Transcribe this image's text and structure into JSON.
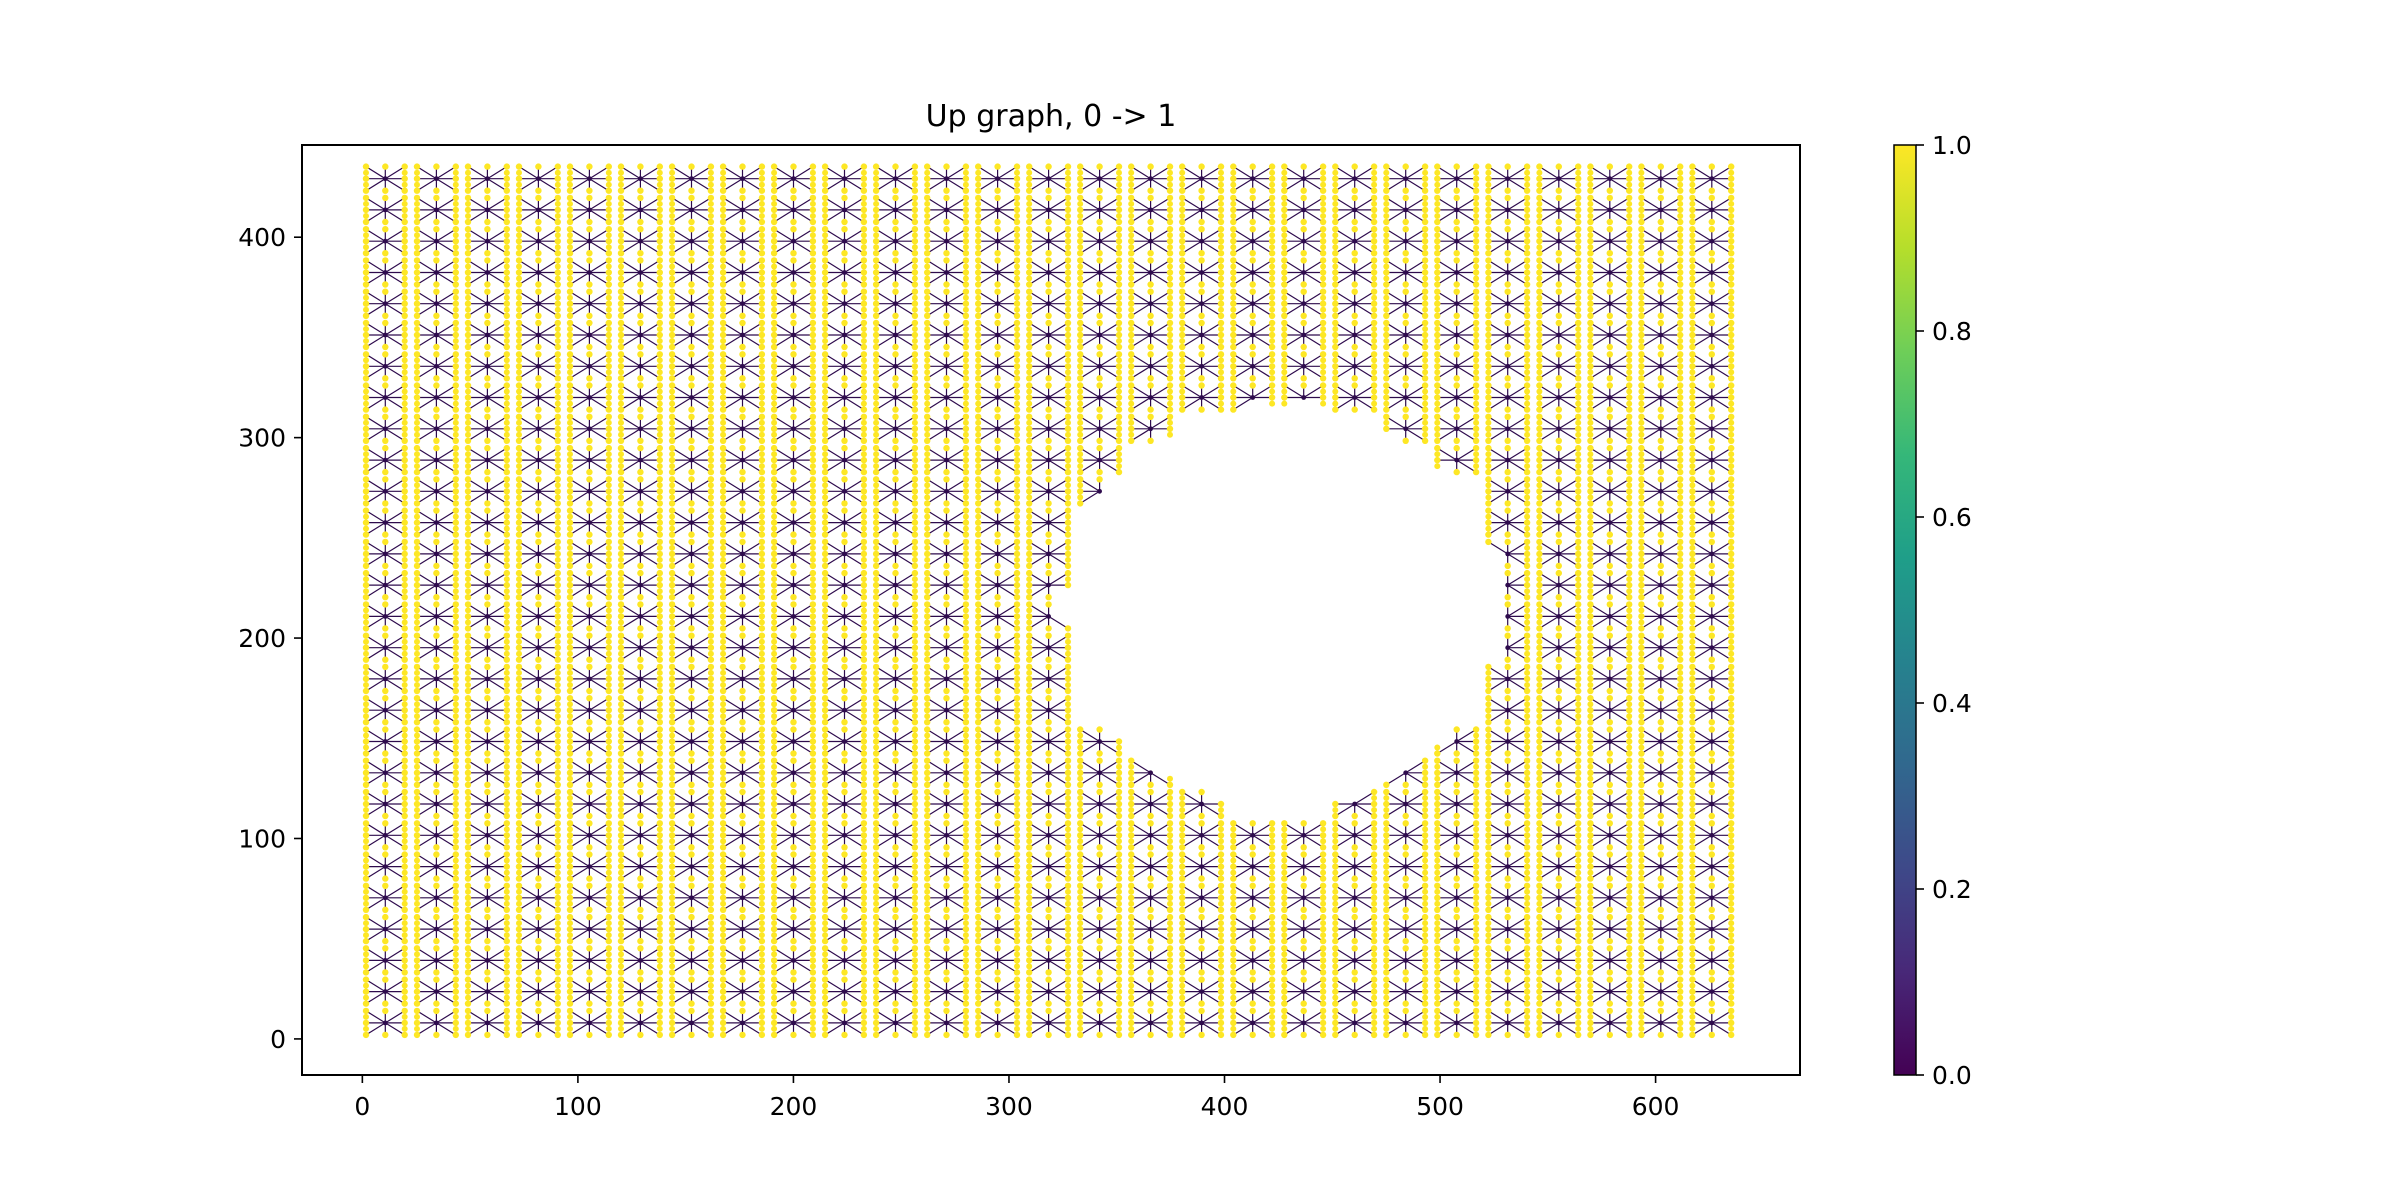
{
  "chart_data": {
    "type": "graph",
    "title": "Up graph, 0 -> 1",
    "xlabel": "",
    "ylabel": "",
    "xlim": [
      -28,
      667
    ],
    "ylim": [
      -18,
      446
    ],
    "xticks": [
      0,
      100,
      200,
      300,
      400,
      500,
      600
    ],
    "yticks": [
      0,
      100,
      200,
      300,
      400
    ],
    "grid": false,
    "node_grid": {
      "x_start": 10.67,
      "x_step": 23.67,
      "columns": 27,
      "y_start": 8,
      "y_step": 15.6,
      "rows": 28,
      "cell_half_width": 9,
      "cell_half_height": 6
    },
    "hole": {
      "center": [
        427,
        216
      ],
      "radius": 100
    },
    "edge_value": 0.0,
    "node_value": 1.0,
    "colorbar": {
      "label": "",
      "colormap": "viridis",
      "range": [
        0.0,
        1.0
      ],
      "ticks": [
        "0.0",
        "0.2",
        "0.4",
        "0.6",
        "0.8",
        "1.0"
      ],
      "stops": [
        "#440154",
        "#482878",
        "#3e4989",
        "#31688e",
        "#26828e",
        "#1f9e89",
        "#35b779",
        "#6ece58",
        "#b5de2b",
        "#fde725"
      ]
    },
    "edge_color": "#2e0b4d",
    "node_color": "#fde725"
  }
}
